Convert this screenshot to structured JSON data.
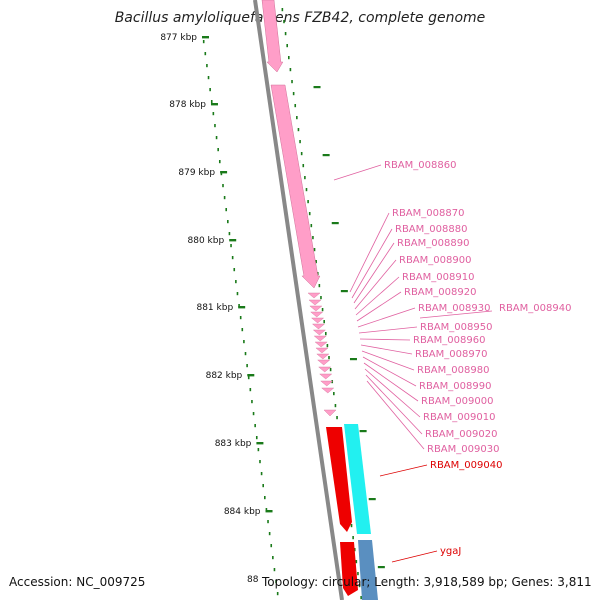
{
  "title": "Bacillus amyloliquefaciens FZB42, complete genome",
  "footer": {
    "accession": "Accession: NC_009725",
    "stats": "Topology: circular; Length: 3,918,589 bp; Genes: 3,811",
    "partial_tick": "88"
  },
  "colors": {
    "backbone": "#888888",
    "tick": "#1a7a1a",
    "gene_pink": "#ff9ec8",
    "gene_red": "#ee0000",
    "gene_cyan": "#22f0f0",
    "gene_blue": "#5a8fc0",
    "label_pink": "#e060a0",
    "label_red": "#dd0000"
  },
  "ticks": [
    {
      "label": "877 kbp"
    },
    {
      "label": "878 kbp"
    },
    {
      "label": "879 kbp"
    },
    {
      "label": "880 kbp"
    },
    {
      "label": "881 kbp"
    },
    {
      "label": "882 kbp"
    },
    {
      "label": "883 kbp"
    },
    {
      "label": "884 kbp"
    }
  ],
  "gene_labels": [
    {
      "text": "RBAM_008860",
      "color": "pink"
    },
    {
      "text": "RBAM_008870",
      "color": "pink"
    },
    {
      "text": "RBAM_008880",
      "color": "pink"
    },
    {
      "text": "RBAM_008890",
      "color": "pink"
    },
    {
      "text": "RBAM_008900",
      "color": "pink"
    },
    {
      "text": "RBAM_008910",
      "color": "pink"
    },
    {
      "text": "RBAM_008920",
      "color": "pink"
    },
    {
      "text": "RBAM_008930",
      "color": "pink"
    },
    {
      "text": "RBAM_008940",
      "color": "pink"
    },
    {
      "text": "RBAM_008950",
      "color": "pink"
    },
    {
      "text": "RBAM_008960",
      "color": "pink"
    },
    {
      "text": "RBAM_008970",
      "color": "pink"
    },
    {
      "text": "RBAM_008980",
      "color": "pink"
    },
    {
      "text": "RBAM_008990",
      "color": "pink"
    },
    {
      "text": "RBAM_009000",
      "color": "pink"
    },
    {
      "text": "RBAM_009010",
      "color": "pink"
    },
    {
      "text": "RBAM_009020",
      "color": "pink"
    },
    {
      "text": "RBAM_009030",
      "color": "pink"
    },
    {
      "text": "RBAM_009040",
      "color": "red"
    },
    {
      "text": "ygaJ",
      "color": "red"
    }
  ]
}
